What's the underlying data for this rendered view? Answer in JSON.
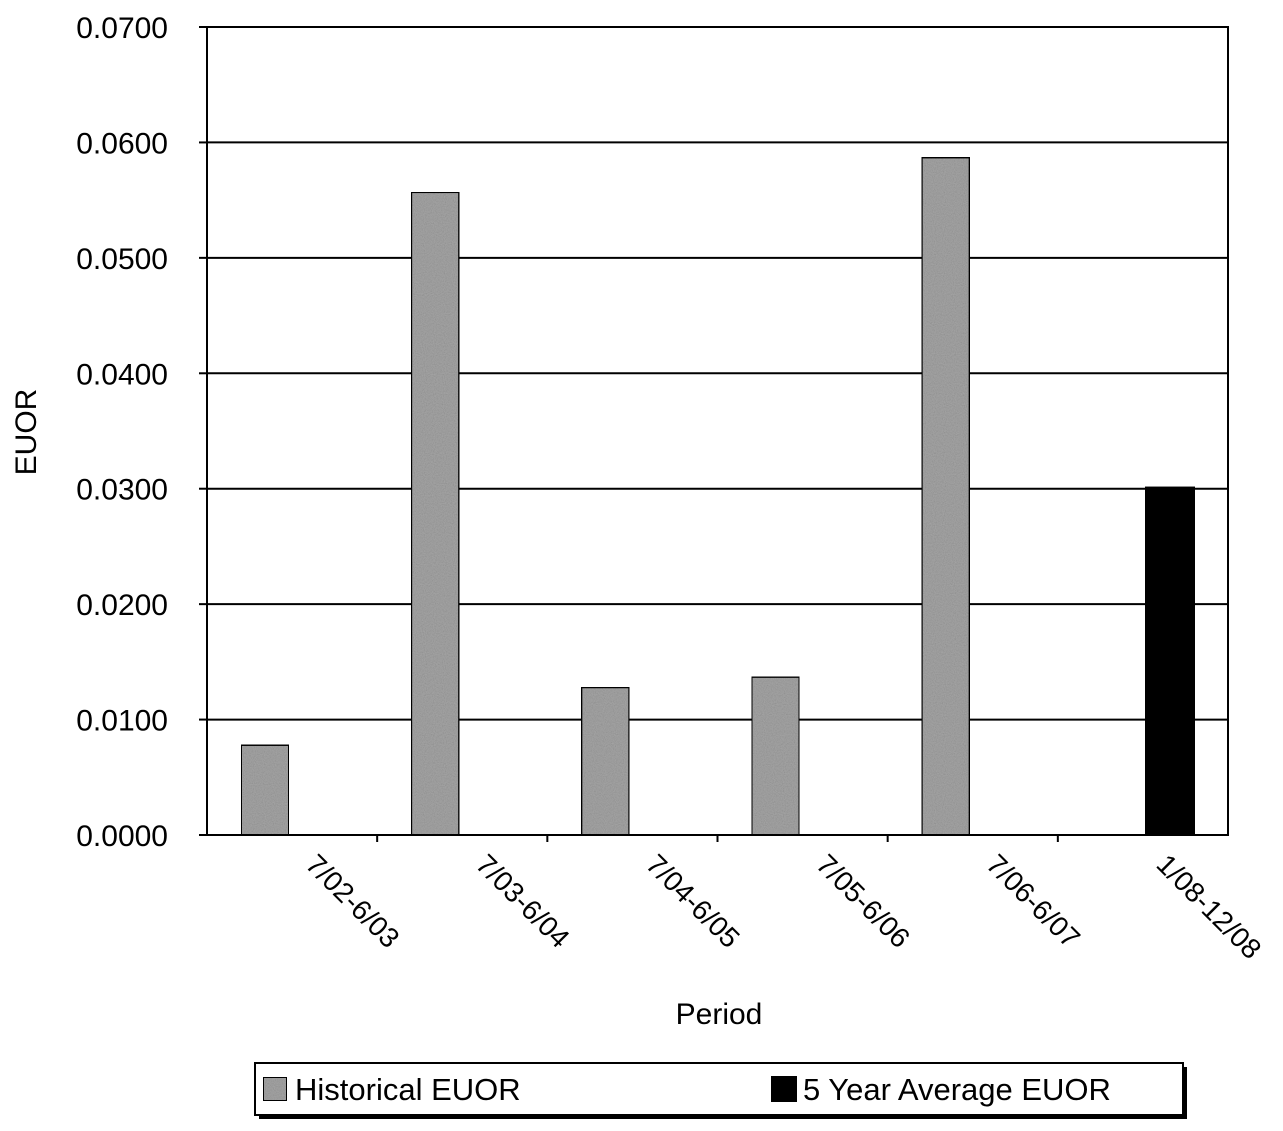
{
  "chart_data": {
    "type": "bar",
    "title": "",
    "xlabel": "Period",
    "ylabel": "EUOR",
    "categories": [
      "7/02-6/03",
      "7/03-6/04",
      "7/04-6/05",
      "7/05-6/06",
      "7/06-6/07",
      "1/08-12/08"
    ],
    "ylim": [
      0,
      0.07
    ],
    "yticks": [
      "0.0000",
      "0.0100",
      "0.0200",
      "0.0300",
      "0.0400",
      "0.0500",
      "0.0600",
      "0.0700"
    ],
    "grid": true,
    "legend_position": "bottom",
    "series": [
      {
        "name": "Historical EUOR",
        "color": "#a6a6a6",
        "values": [
          0.0078,
          0.0557,
          0.0128,
          0.0137,
          0.0587,
          null
        ]
      },
      {
        "name": "5 Year Average EUOR",
        "color": "#000000",
        "values": [
          null,
          null,
          null,
          null,
          null,
          0.0301
        ]
      }
    ]
  }
}
